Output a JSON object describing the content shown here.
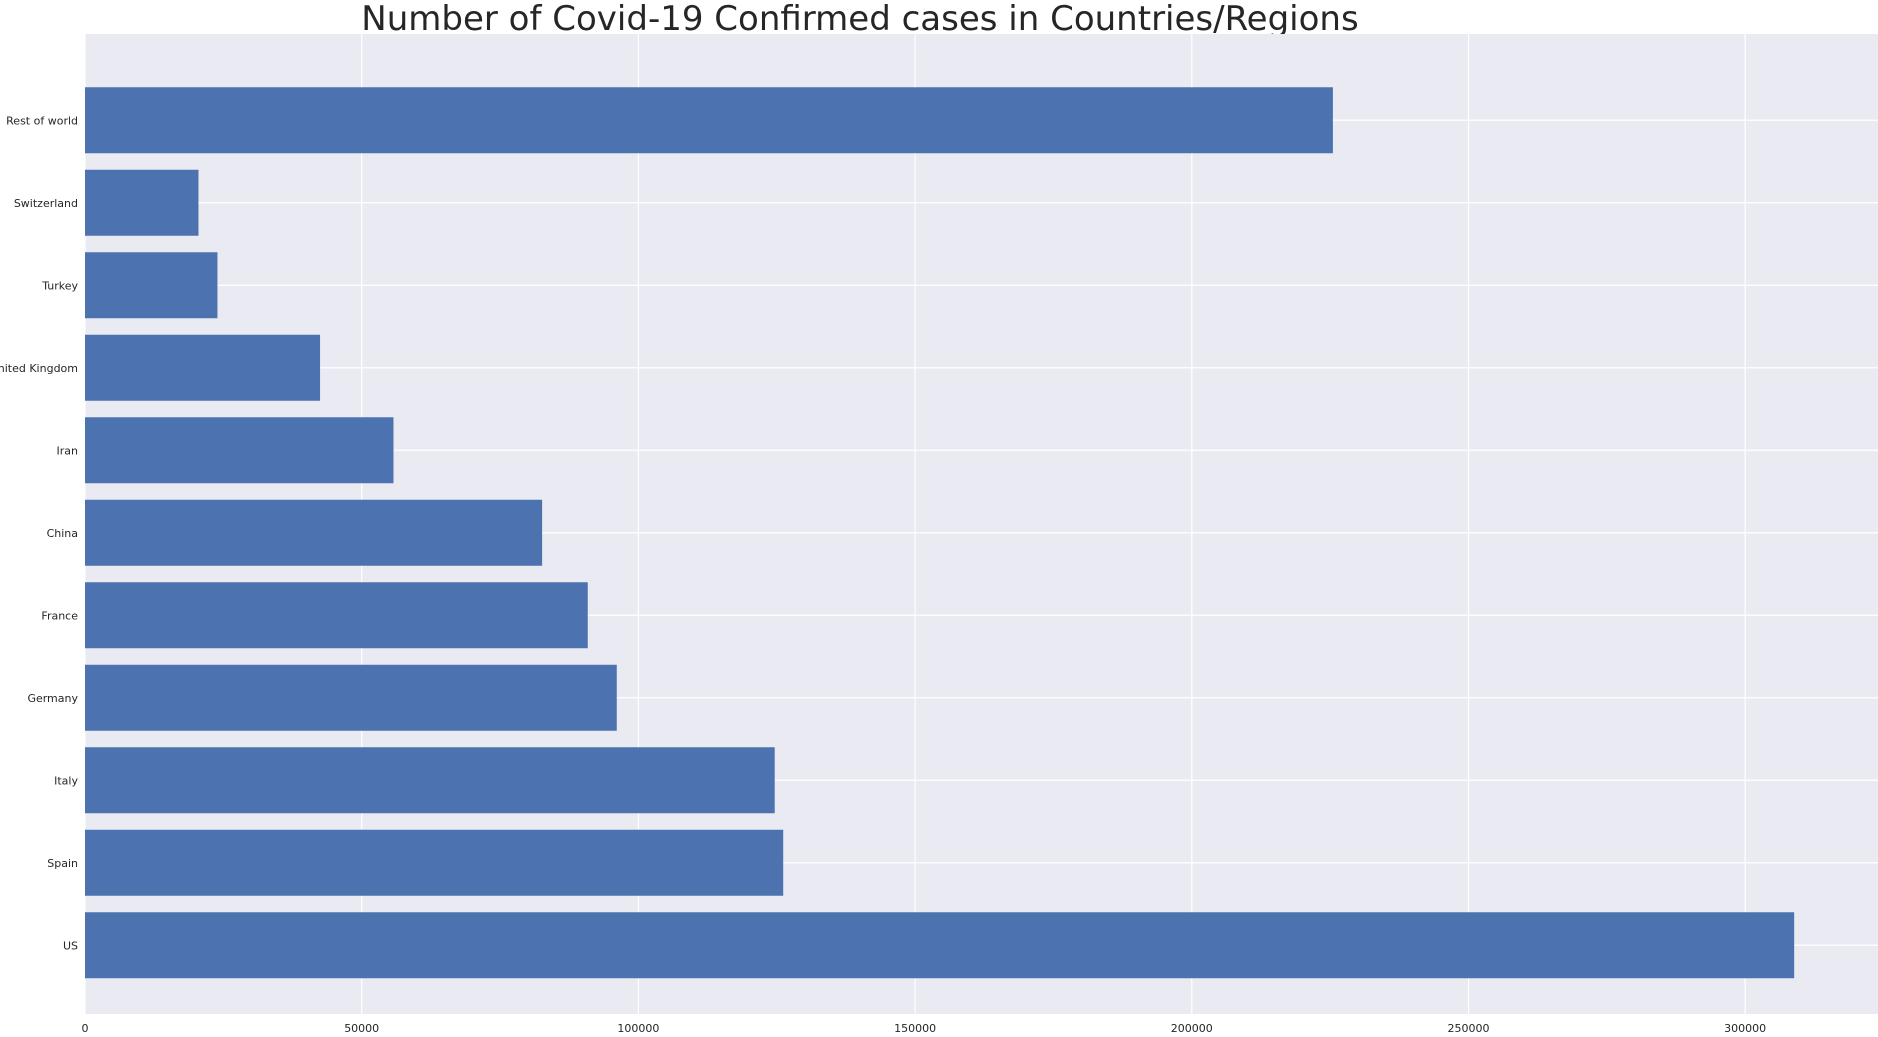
{
  "chart_data": {
    "type": "bar",
    "orientation": "horizontal",
    "title": "Number of Covid-19 Confirmed cases in Countries/Regions",
    "xlabel": "",
    "ylabel": "",
    "categories": [
      "US",
      "Spain",
      "Italy",
      "Germany",
      "France",
      "China",
      "Iran",
      "United Kingdom",
      "Turkey",
      "Switzerland",
      "Rest of world"
    ],
    "values": [
      308850,
      126168,
      124632,
      96092,
      90848,
      82602,
      55743,
      42477,
      23934,
      20505,
      225500
    ],
    "xlim": [
      0,
      324000
    ],
    "xticks": [
      0,
      50000,
      100000,
      150000,
      200000,
      250000,
      300000
    ],
    "xtick_labels": [
      "0",
      "50000",
      "100000",
      "150000",
      "200000",
      "250000",
      "300000"
    ],
    "grid": true,
    "colors": {
      "bar": "#4c72b0",
      "background": "#eaeaf2",
      "grid": "#ffffff"
    }
  }
}
